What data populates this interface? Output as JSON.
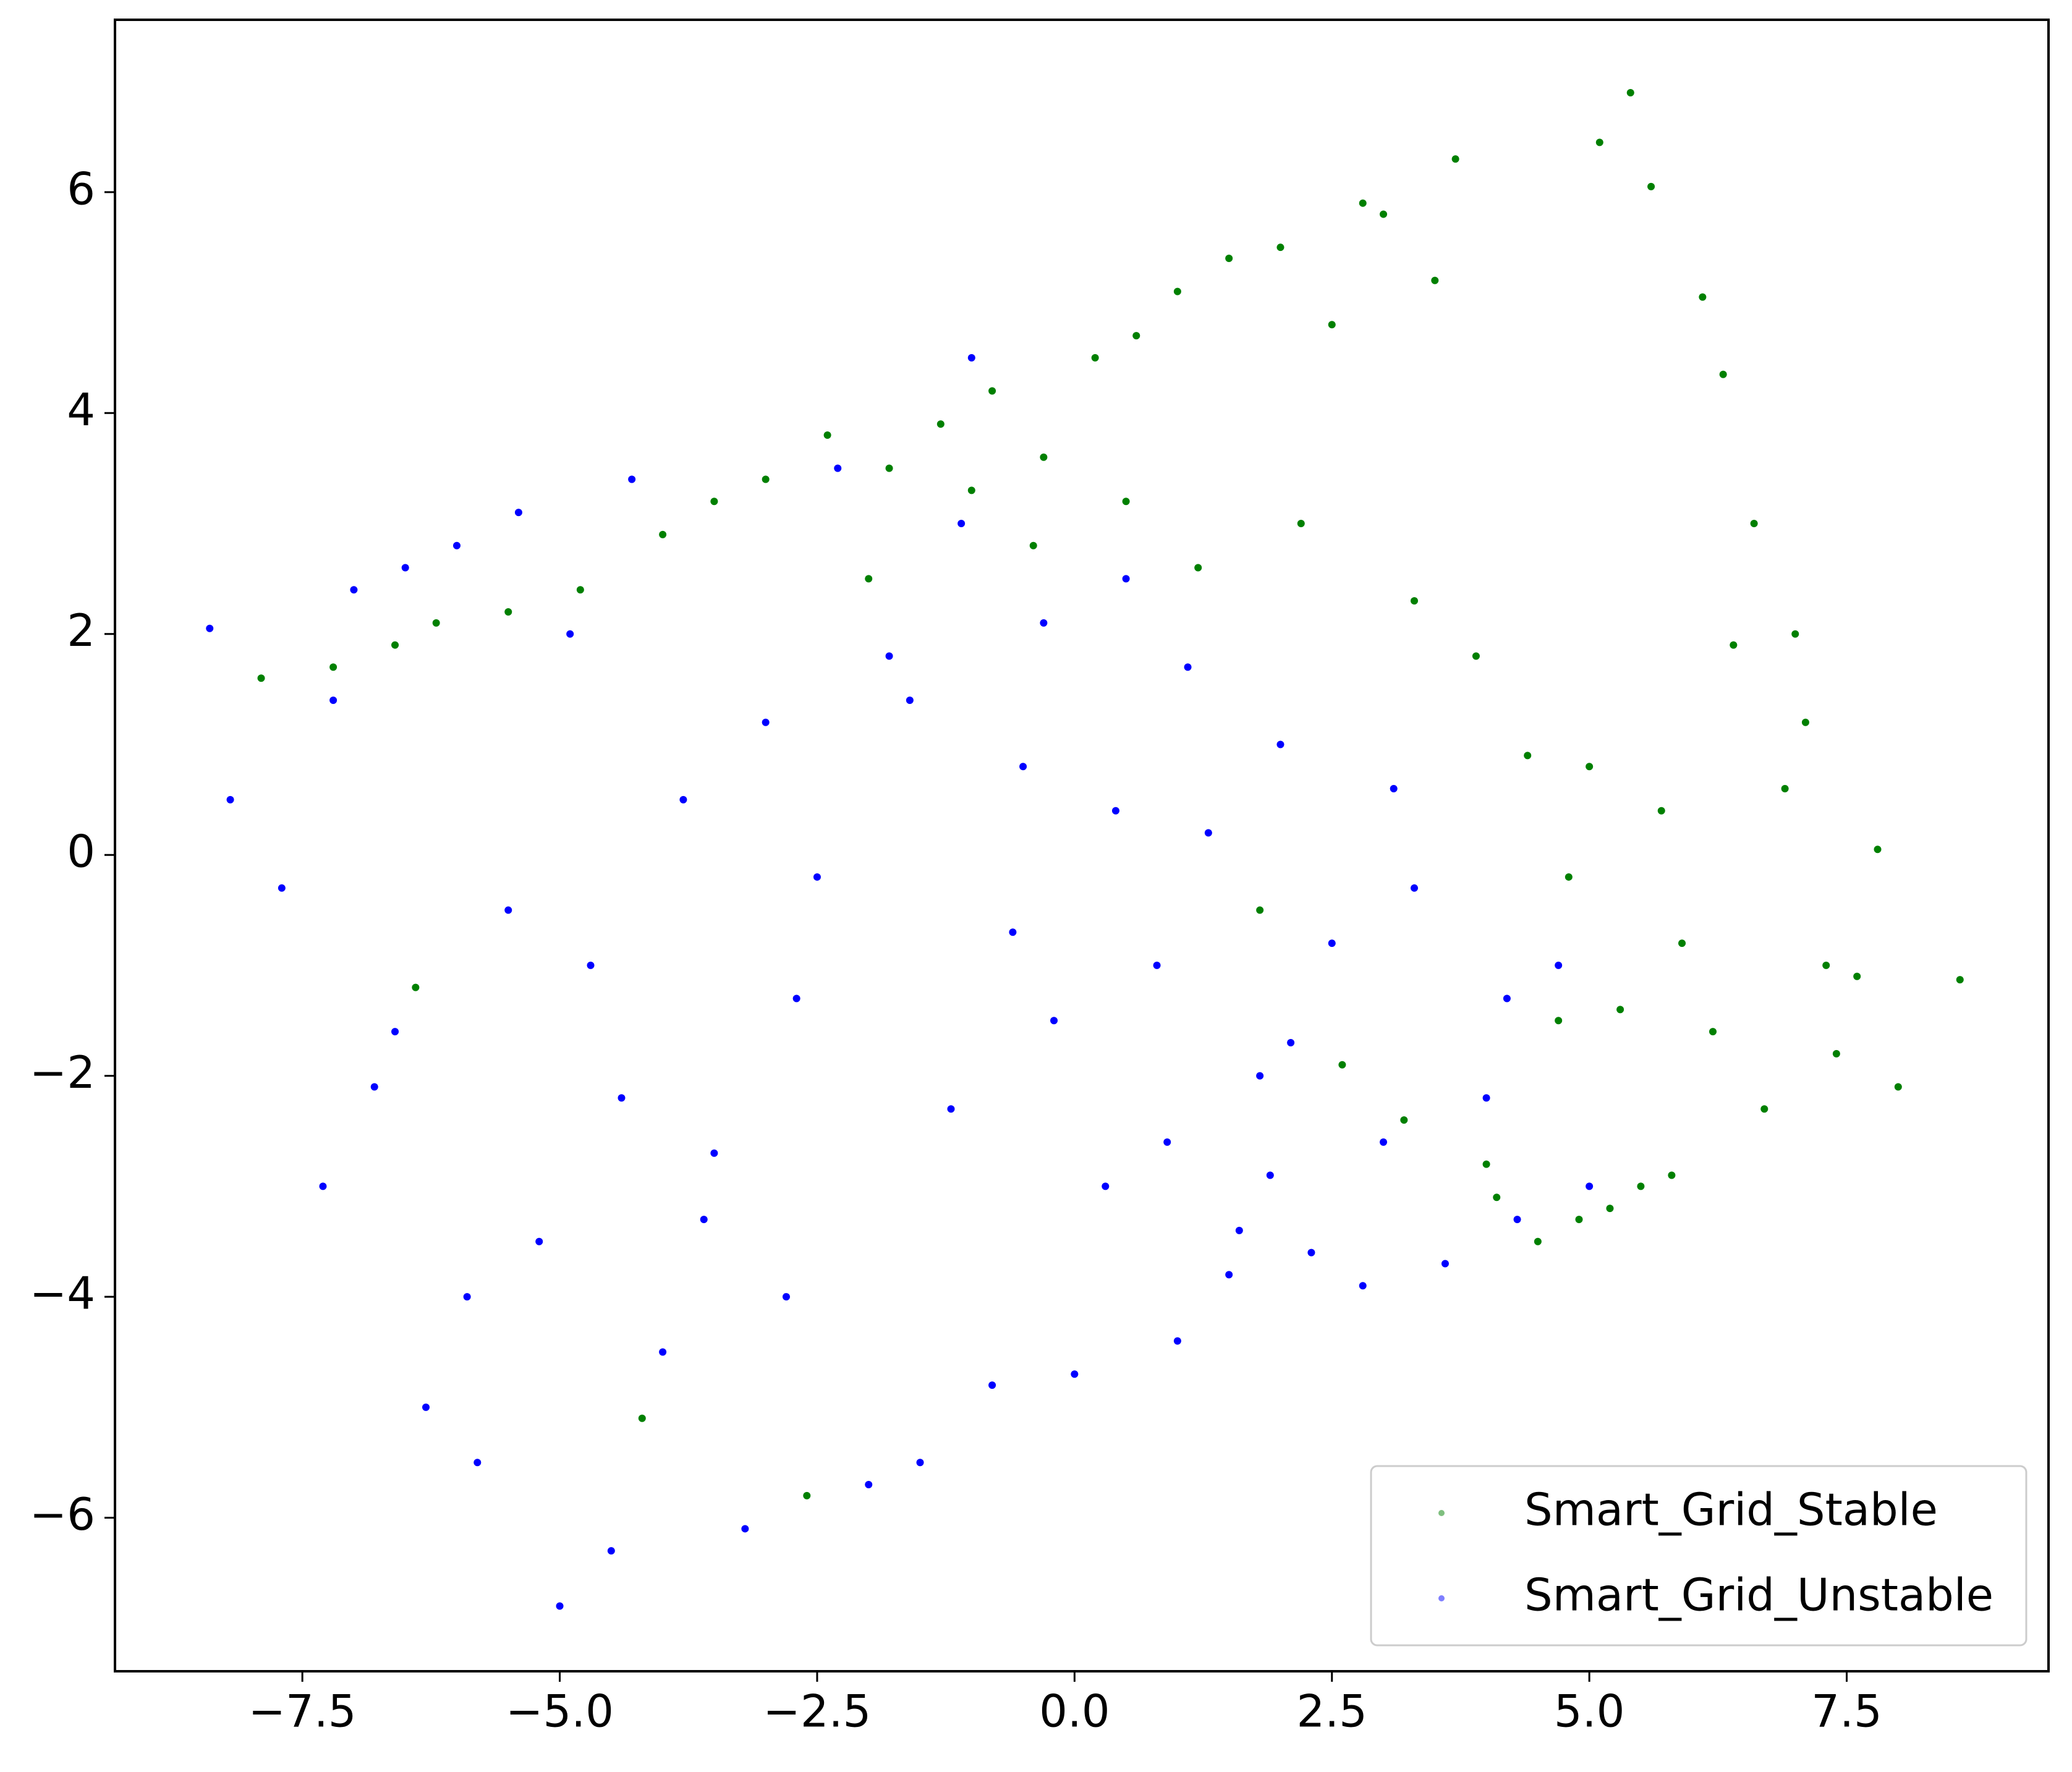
{
  "chart_data": {
    "type": "scatter",
    "xlim": [
      -9.32,
      9.46
    ],
    "ylim": [
      -7.39,
      7.56
    ],
    "xticks": [
      {
        "value": -7.5,
        "label": "−7.5"
      },
      {
        "value": -5.0,
        "label": "−5.0"
      },
      {
        "value": -2.5,
        "label": "−2.5"
      },
      {
        "value": 0.0,
        "label": "0.0"
      },
      2.5,
      {
        "value": 5.0,
        "label": "5.0"
      },
      7.5
    ],
    "yticks": [
      {
        "value": -6,
        "label": "−6"
      },
      {
        "value": -4,
        "label": "−4"
      },
      {
        "value": -2,
        "label": "−2"
      },
      0,
      2,
      4,
      6
    ],
    "legend": "lower right",
    "series": [
      {
        "name": "Smart_Grid_Stable",
        "color": "#008000",
        "x": [
          5.4,
          5.1,
          5.6,
          6.1,
          6.3,
          6.6,
          7.0,
          7.1,
          7.3,
          7.6,
          7.8,
          8.0,
          8.6,
          6.9,
          6.2,
          5.8,
          5.5,
          5.2,
          4.9,
          4.5,
          4.0,
          3.7,
          3.5,
          3.0,
          2.8,
          2.5,
          2.0,
          1.5,
          1.0,
          0.6,
          0.2,
          -0.3,
          -0.8,
          -1.3,
          -1.8,
          -2.4,
          -3.0,
          -3.5,
          -4.0,
          -4.8,
          -5.5,
          -6.2,
          -6.6,
          -7.2,
          -7.9,
          3.3,
          3.9,
          4.4,
          4.8,
          5.3,
          5.7,
          6.4,
          2.2,
          1.2,
          0.5,
          -0.4,
          -1.0,
          -2.0,
          1.8,
          2.6,
          3.2,
          4.1,
          4.7,
          5.0,
          5.9,
          6.7,
          7.4,
          -6.4,
          -4.2,
          -2.6
        ],
        "y": [
          6.9,
          6.45,
          6.05,
          5.05,
          4.35,
          3.0,
          2.0,
          1.2,
          -1.0,
          -1.1,
          0.05,
          -2.1,
          -1.13,
          0.6,
          -1.6,
          -2.9,
          -3.0,
          -3.2,
          -3.3,
          -3.5,
          -2.8,
          6.3,
          5.2,
          5.8,
          5.9,
          4.8,
          5.5,
          5.4,
          5.1,
          4.7,
          4.5,
          3.6,
          4.2,
          3.9,
          3.5,
          3.8,
          3.4,
          3.2,
          2.9,
          2.4,
          2.2,
          2.1,
          1.9,
          1.7,
          1.6,
          2.3,
          1.8,
          0.9,
          -0.2,
          -1.4,
          0.4,
          1.9,
          3.0,
          2.6,
          3.2,
          2.8,
          3.3,
          2.5,
          -0.5,
          -1.9,
          -2.4,
          -3.1,
          -1.5,
          0.8,
          -0.8,
          -2.3,
          -1.8,
          -1.2,
          -5.1,
          -5.8
        ]
      },
      {
        "name": "Smart_Grid_Unstable",
        "color": "#0000ff",
        "x": [
          -8.4,
          -8.2,
          -7.7,
          -7.3,
          -7.2,
          -7.0,
          -6.8,
          -6.5,
          -6.3,
          -6.0,
          -5.8,
          -5.5,
          -5.4,
          -5.2,
          -5.0,
          -4.9,
          -4.7,
          -4.5,
          -4.3,
          -4.0,
          -3.8,
          -3.5,
          -3.2,
          -3.0,
          -2.8,
          -2.5,
          -2.3,
          -2.0,
          -1.8,
          -1.5,
          -1.2,
          -1.0,
          -0.8,
          -0.5,
          -0.2,
          0.0,
          0.3,
          0.5,
          0.8,
          1.0,
          1.3,
          1.5,
          1.8,
          2.0,
          2.3,
          2.5,
          2.8,
          3.0,
          3.3,
          3.6,
          4.0,
          4.3,
          4.7,
          5.0,
          -6.6,
          -5.9,
          -4.4,
          -3.6,
          -2.7,
          -1.6,
          -0.6,
          0.4,
          1.1,
          2.1,
          3.1,
          4.2,
          -1.1,
          -0.3,
          0.9,
          1.9,
          1.6
        ],
        "y": [
          2.05,
          0.5,
          -0.3,
          -3.0,
          1.4,
          2.4,
          -2.1,
          2.6,
          -5.0,
          2.8,
          -5.5,
          -0.5,
          3.1,
          -3.5,
          -6.8,
          2.0,
          -1.0,
          -6.3,
          3.4,
          -4.5,
          0.5,
          -2.7,
          -6.1,
          1.2,
          -4.0,
          -0.2,
          3.5,
          -5.7,
          1.8,
          -5.5,
          -2.3,
          4.5,
          -4.8,
          0.8,
          -1.5,
          -4.7,
          -3.0,
          2.5,
          -1.0,
          -4.4,
          0.2,
          -3.8,
          -2.0,
          1.0,
          -3.6,
          -0.8,
          -3.9,
          -2.6,
          -0.3,
          -3.7,
          -2.2,
          -3.3,
          -1.0,
          -3.0,
          -1.6,
          -4.0,
          -2.2,
          -3.3,
          -1.3,
          1.4,
          -0.7,
          0.4,
          1.7,
          -1.7,
          0.6,
          -1.3,
          3.0,
          2.1,
          -2.6,
          -2.9,
          -3.4
        ]
      }
    ]
  }
}
